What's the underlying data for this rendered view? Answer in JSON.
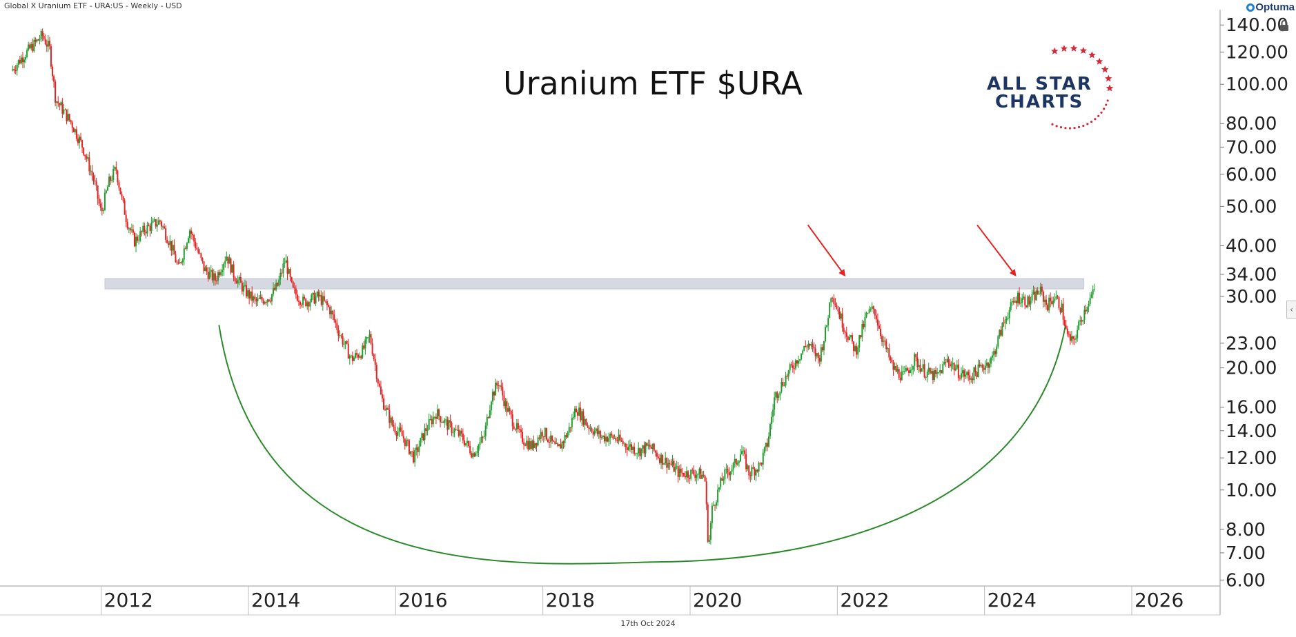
{
  "header": {
    "instrument_label": "Global X Uranium ETF - URA:US - Weekly - USD",
    "brand": "Optuma"
  },
  "footer": {
    "date_label": "17th Oct 2024"
  },
  "chart_data": {
    "type": "candlestick",
    "title": "Uranium ETF $URA",
    "y_scale": "log",
    "ylim": [
      5.8,
      148
    ],
    "xlim": [
      2010.7,
      2027.2
    ],
    "y_ticks": [
      "140.00",
      "120.00",
      "100.00",
      "80.00",
      "70.00",
      "60.00",
      "50.00",
      "40.00",
      "34.00",
      "30.00",
      "23.00",
      "20.00",
      "16.00",
      "14.00",
      "12.00",
      "10.00",
      "8.00",
      "7.00",
      "6.00"
    ],
    "x_ticks": [
      "2012",
      "2014",
      "2016",
      "2018",
      "2020",
      "2022",
      "2024",
      "2026"
    ],
    "series": [
      {
        "close_path": [
          [
            2010.78,
            108
          ],
          [
            2010.95,
            118
          ],
          [
            2011.1,
            126
          ],
          [
            2011.2,
            132
          ],
          [
            2011.3,
            122
          ],
          [
            2011.38,
            92
          ],
          [
            2011.6,
            80
          ],
          [
            2011.75,
            70
          ],
          [
            2011.9,
            58
          ],
          [
            2012.0,
            48
          ],
          [
            2012.1,
            57
          ],
          [
            2012.2,
            62
          ],
          [
            2012.28,
            52
          ],
          [
            2012.35,
            46
          ],
          [
            2012.45,
            41
          ],
          [
            2012.6,
            44
          ],
          [
            2012.8,
            46
          ],
          [
            2012.95,
            40
          ],
          [
            2013.05,
            35
          ],
          [
            2013.2,
            44
          ],
          [
            2013.4,
            35
          ],
          [
            2013.55,
            33
          ],
          [
            2013.7,
            38
          ],
          [
            2013.8,
            34
          ],
          [
            2013.95,
            31
          ],
          [
            2014.1,
            29
          ],
          [
            2014.3,
            30
          ],
          [
            2014.4,
            32
          ],
          [
            2014.5,
            37
          ],
          [
            2014.6,
            31
          ],
          [
            2014.75,
            29
          ],
          [
            2014.95,
            30
          ],
          [
            2015.1,
            28
          ],
          [
            2015.25,
            24
          ],
          [
            2015.4,
            21
          ],
          [
            2015.55,
            22
          ],
          [
            2015.65,
            24
          ],
          [
            2015.8,
            17
          ],
          [
            2015.95,
            14.5
          ],
          [
            2016.1,
            13.5
          ],
          [
            2016.25,
            12
          ],
          [
            2016.4,
            14
          ],
          [
            2016.55,
            15.5
          ],
          [
            2016.7,
            14.5
          ],
          [
            2016.9,
            13.5
          ],
          [
            2017.05,
            12.3
          ],
          [
            2017.2,
            13.5
          ],
          [
            2017.3,
            17
          ],
          [
            2017.4,
            18.5
          ],
          [
            2017.5,
            16
          ],
          [
            2017.7,
            13.5
          ],
          [
            2017.85,
            12.8
          ],
          [
            2018.0,
            14
          ],
          [
            2018.2,
            12.5
          ],
          [
            2018.35,
            14
          ],
          [
            2018.45,
            16
          ],
          [
            2018.6,
            14.5
          ],
          [
            2018.8,
            13.5
          ],
          [
            2018.95,
            13.5
          ],
          [
            2019.1,
            13
          ],
          [
            2019.3,
            12.5
          ],
          [
            2019.45,
            12.8
          ],
          [
            2019.6,
            12
          ],
          [
            2019.75,
            11.5
          ],
          [
            2019.85,
            11
          ],
          [
            2019.95,
            11
          ],
          [
            2020.1,
            11
          ],
          [
            2020.2,
            10.8
          ],
          [
            2020.25,
            7.2
          ],
          [
            2020.3,
            9
          ],
          [
            2020.45,
            10.8
          ],
          [
            2020.6,
            11.5
          ],
          [
            2020.7,
            12.5
          ],
          [
            2020.8,
            11
          ],
          [
            2020.95,
            11.5
          ],
          [
            2021.05,
            13
          ],
          [
            2021.15,
            17
          ],
          [
            2021.3,
            19
          ],
          [
            2021.45,
            21
          ],
          [
            2021.6,
            23
          ],
          [
            2021.75,
            21
          ],
          [
            2021.85,
            25
          ],
          [
            2021.92,
            31
          ],
          [
            2022.0,
            28
          ],
          [
            2022.1,
            25
          ],
          [
            2022.25,
            22
          ],
          [
            2022.4,
            27
          ],
          [
            2022.5,
            28
          ],
          [
            2022.6,
            24
          ],
          [
            2022.75,
            20
          ],
          [
            2022.9,
            19
          ],
          [
            2023.05,
            21
          ],
          [
            2023.2,
            19.5
          ],
          [
            2023.35,
            19
          ],
          [
            2023.5,
            21
          ],
          [
            2023.65,
            19.5
          ],
          [
            2023.8,
            19
          ],
          [
            2023.95,
            20
          ],
          [
            2024.1,
            21
          ],
          [
            2024.2,
            24
          ],
          [
            2024.3,
            27
          ],
          [
            2024.45,
            30
          ],
          [
            2024.6,
            29
          ],
          [
            2024.75,
            31
          ],
          [
            2024.85,
            28.5
          ],
          [
            2024.95,
            30
          ],
          [
            2025.05,
            28
          ],
          [
            2025.12,
            24
          ],
          [
            2025.2,
            23
          ],
          [
            2025.3,
            26
          ],
          [
            2025.4,
            29
          ],
          [
            2025.5,
            31
          ]
        ]
      }
    ],
    "resistance_zone": {
      "low": 31.3,
      "high": 33.2,
      "x_start": 2012.05,
      "x_end": 2025.35
    },
    "arc": {
      "x_start": 2013.6,
      "x_end": 2025.1,
      "y_end": 25.5,
      "y_bottom": 6.65,
      "x_bottom": 2019.6
    },
    "arrows": [
      {
        "from": [
          2021.6,
          45
        ],
        "to": [
          2022.1,
          33.8
        ]
      },
      {
        "from": [
          2023.9,
          45
        ],
        "to": [
          2024.42,
          33.8
        ]
      }
    ],
    "logo": {
      "line1": "ALL STAR",
      "line2": "CHARTS"
    },
    "colors": {
      "up": "#1e9e2b",
      "down": "#e52222",
      "arc": "#2a8a2a",
      "arrow": "#e52222",
      "zone": "#d6d9e2"
    }
  }
}
